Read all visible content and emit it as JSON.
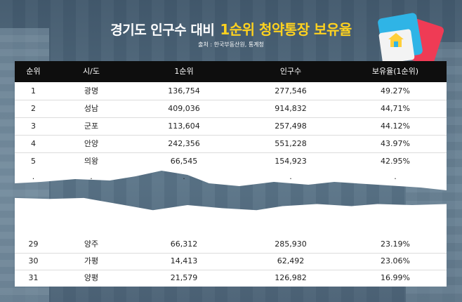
{
  "title_main": "경기도 인구수 대비",
  "title_highlight": "1순위 청약통장 보유율",
  "source": "출처 : 한국부동산원, 통계청",
  "colors": {
    "highlight": "#ffd21f",
    "header_bg": "#0e0e0e",
    "card_red": "#ef3b55",
    "card_blue": "#2fb4e6"
  },
  "table": {
    "headers": [
      "순위",
      "시/도",
      "1순위",
      "인구수",
      "보유율(1순위)"
    ],
    "top_rows": [
      [
        "1",
        "광명",
        "136,754",
        "277,546",
        "49.27%"
      ],
      [
        "2",
        "성남",
        "409,036",
        "914,832",
        "44,71%"
      ],
      [
        "3",
        "군포",
        "113,604",
        "257,498",
        "44.12%"
      ],
      [
        "4",
        "안양",
        "242,356",
        "551,228",
        "43.97%"
      ],
      [
        "5",
        "의왕",
        "66,545",
        "154,923",
        "42.95%"
      ]
    ],
    "ellipsis": [
      ".",
      ".",
      ".",
      ".",
      "."
    ],
    "bottom_rows": [
      [
        "29",
        "양주",
        "66,312",
        "285,930",
        "23.19%"
      ],
      [
        "30",
        "가평",
        "14,413",
        "62,492",
        "23.06%"
      ],
      [
        "31",
        "양평",
        "21,579",
        "126,982",
        "16.99%"
      ]
    ]
  }
}
